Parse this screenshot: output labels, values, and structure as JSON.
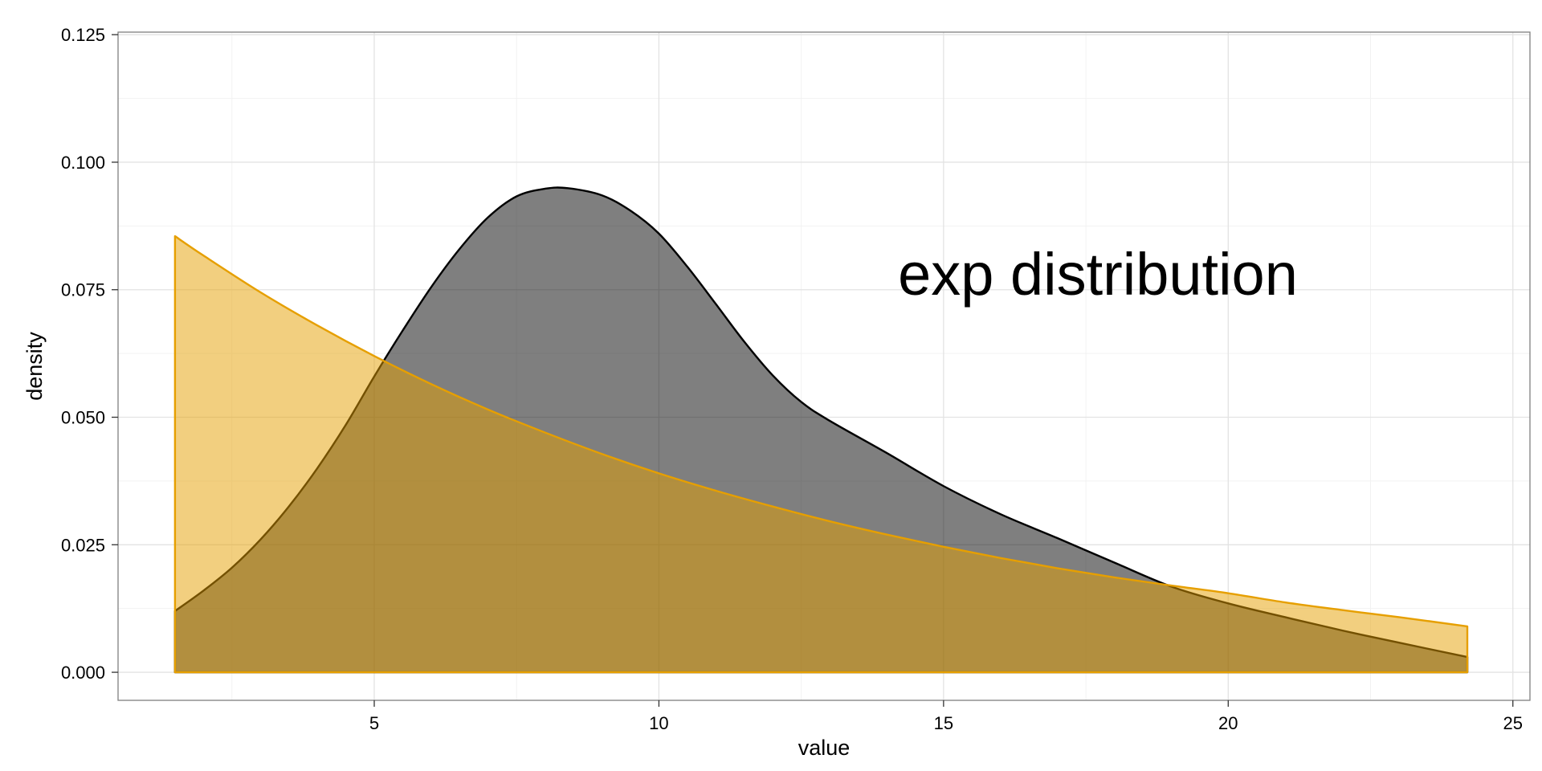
{
  "chart_data": {
    "type": "area",
    "title": "",
    "xlabel": "value",
    "ylabel": "density",
    "xlim": [
      0.5,
      25.3
    ],
    "ylim": [
      -0.0055,
      0.1255
    ],
    "x_ticks": [
      5,
      10,
      15,
      20,
      25
    ],
    "x_tick_labels": [
      "5",
      "10",
      "15",
      "20",
      "25"
    ],
    "y_ticks": [
      0,
      0.025,
      0.05,
      0.075,
      0.1,
      0.125
    ],
    "y_tick_labels": [
      "0.000",
      "0.025",
      "0.050",
      "0.075",
      "0.100",
      "0.125"
    ],
    "grid": true,
    "legend": "none",
    "annotation": {
      "text": "exp distribution",
      "x": 14.2,
      "y": 0.074
    },
    "series": [
      {
        "fill": "#000000",
        "fill_opacity": 0.5,
        "stroke": "#000000",
        "x": [
          1.5,
          2,
          2.5,
          3,
          3.5,
          4,
          4.5,
          5,
          5.5,
          6,
          6.5,
          7,
          7.5,
          8,
          8.4,
          9,
          9.5,
          10,
          10.5,
          11,
          11.5,
          12,
          12.5,
          13,
          14,
          15,
          16,
          17,
          18,
          19,
          20,
          21,
          22,
          23,
          24.2
        ],
        "y": [
          0.012,
          0.016,
          0.0205,
          0.026,
          0.0325,
          0.04,
          0.0485,
          0.058,
          0.067,
          0.0755,
          0.083,
          0.0892,
          0.0933,
          0.0948,
          0.0949,
          0.0935,
          0.0905,
          0.086,
          0.0795,
          0.0722,
          0.0648,
          0.0582,
          0.053,
          0.0493,
          0.043,
          0.0365,
          0.031,
          0.0263,
          0.0215,
          0.0168,
          0.0135,
          0.0108,
          0.0082,
          0.0058,
          0.003
        ]
      },
      {
        "fill": "#E69F00",
        "fill_opacity": 0.5,
        "stroke": "#E69F00",
        "x": [
          1.5,
          2,
          3,
          4,
          5,
          6,
          7,
          8,
          9,
          10,
          11,
          12,
          13,
          14,
          15,
          16,
          17,
          18,
          19,
          20,
          21,
          22,
          23,
          24.2
        ],
        "y": [
          0.0855,
          0.0817,
          0.0745,
          0.068,
          0.062,
          0.0565,
          0.0515,
          0.047,
          0.0428,
          0.039,
          0.0356,
          0.0325,
          0.0296,
          0.027,
          0.0246,
          0.0224,
          0.0204,
          0.0186,
          0.017,
          0.0155,
          0.0137,
          0.0122,
          0.0108,
          0.009
        ]
      }
    ]
  }
}
